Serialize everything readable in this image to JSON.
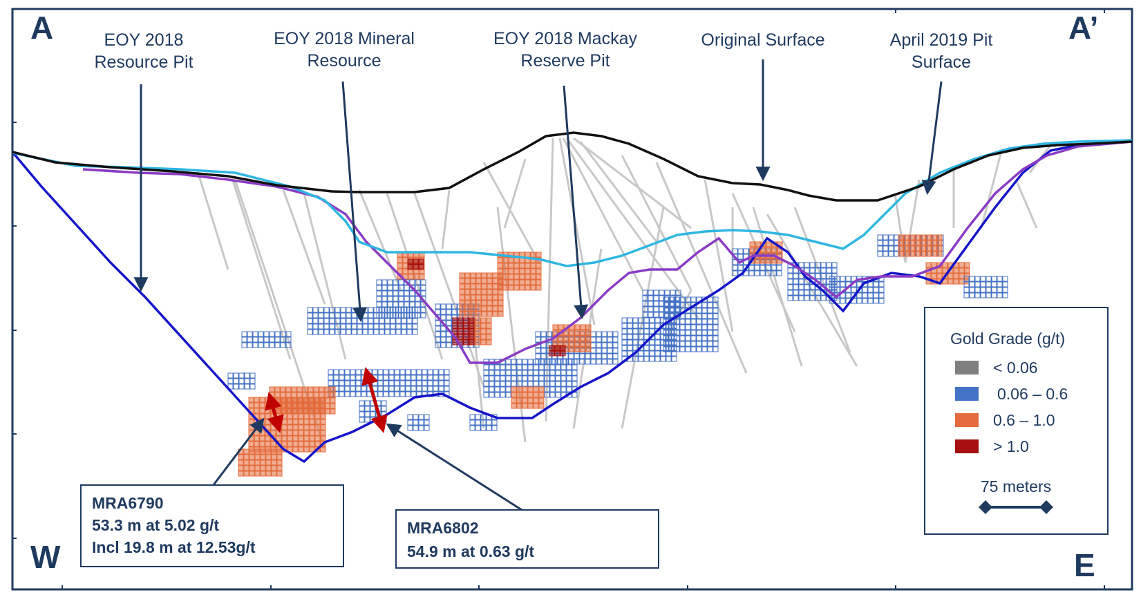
{
  "corners": {
    "top_left": "A",
    "top_right": "A’",
    "bottom_left": "W",
    "bottom_right": "E"
  },
  "callouts": [
    {
      "lines": [
        "EOY 2018",
        "Resource Pit"
      ]
    },
    {
      "lines": [
        "EOY 2018 Mineral",
        "Resource"
      ]
    },
    {
      "lines": [
        "EOY 2018 Mackay",
        "Reserve Pit"
      ]
    },
    {
      "lines": [
        "Original Surface"
      ]
    },
    {
      "lines": [
        "April 2019 Pit",
        "Surface"
      ]
    }
  ],
  "intercepts": [
    {
      "hole": "MRA6790",
      "lines": [
        "53.3 m at 5.02 g/t",
        "Incl 19.8 m at 12.53g/t"
      ]
    },
    {
      "hole": "MRA6802",
      "lines": [
        "54.9 m at 0.63 g/t"
      ]
    }
  ],
  "legend": {
    "title": "Gold Grade (g/t)",
    "items": [
      {
        "label": "< 0.06",
        "color": "#7f7f7f"
      },
      {
        "label": "0.06 – 0.6",
        "color": "#4472c4"
      },
      {
        "label": "0.6 – 1.0",
        "color": "#e46c3c"
      },
      {
        "label": "> 1.0",
        "color": "#a50f0f"
      }
    ],
    "scale_label": "75 meters"
  },
  "colors": {
    "frame": "#1f3a5f",
    "original_surface": "#111111",
    "april_2019_surface": "#2fb6e2",
    "eoy_2018_resource_pit": "#1515c8",
    "eoy_2018_reserve_pit": "#8b3cc4",
    "drillhole": "#c8c8c8",
    "intercept_arrow": "#c00000"
  }
}
